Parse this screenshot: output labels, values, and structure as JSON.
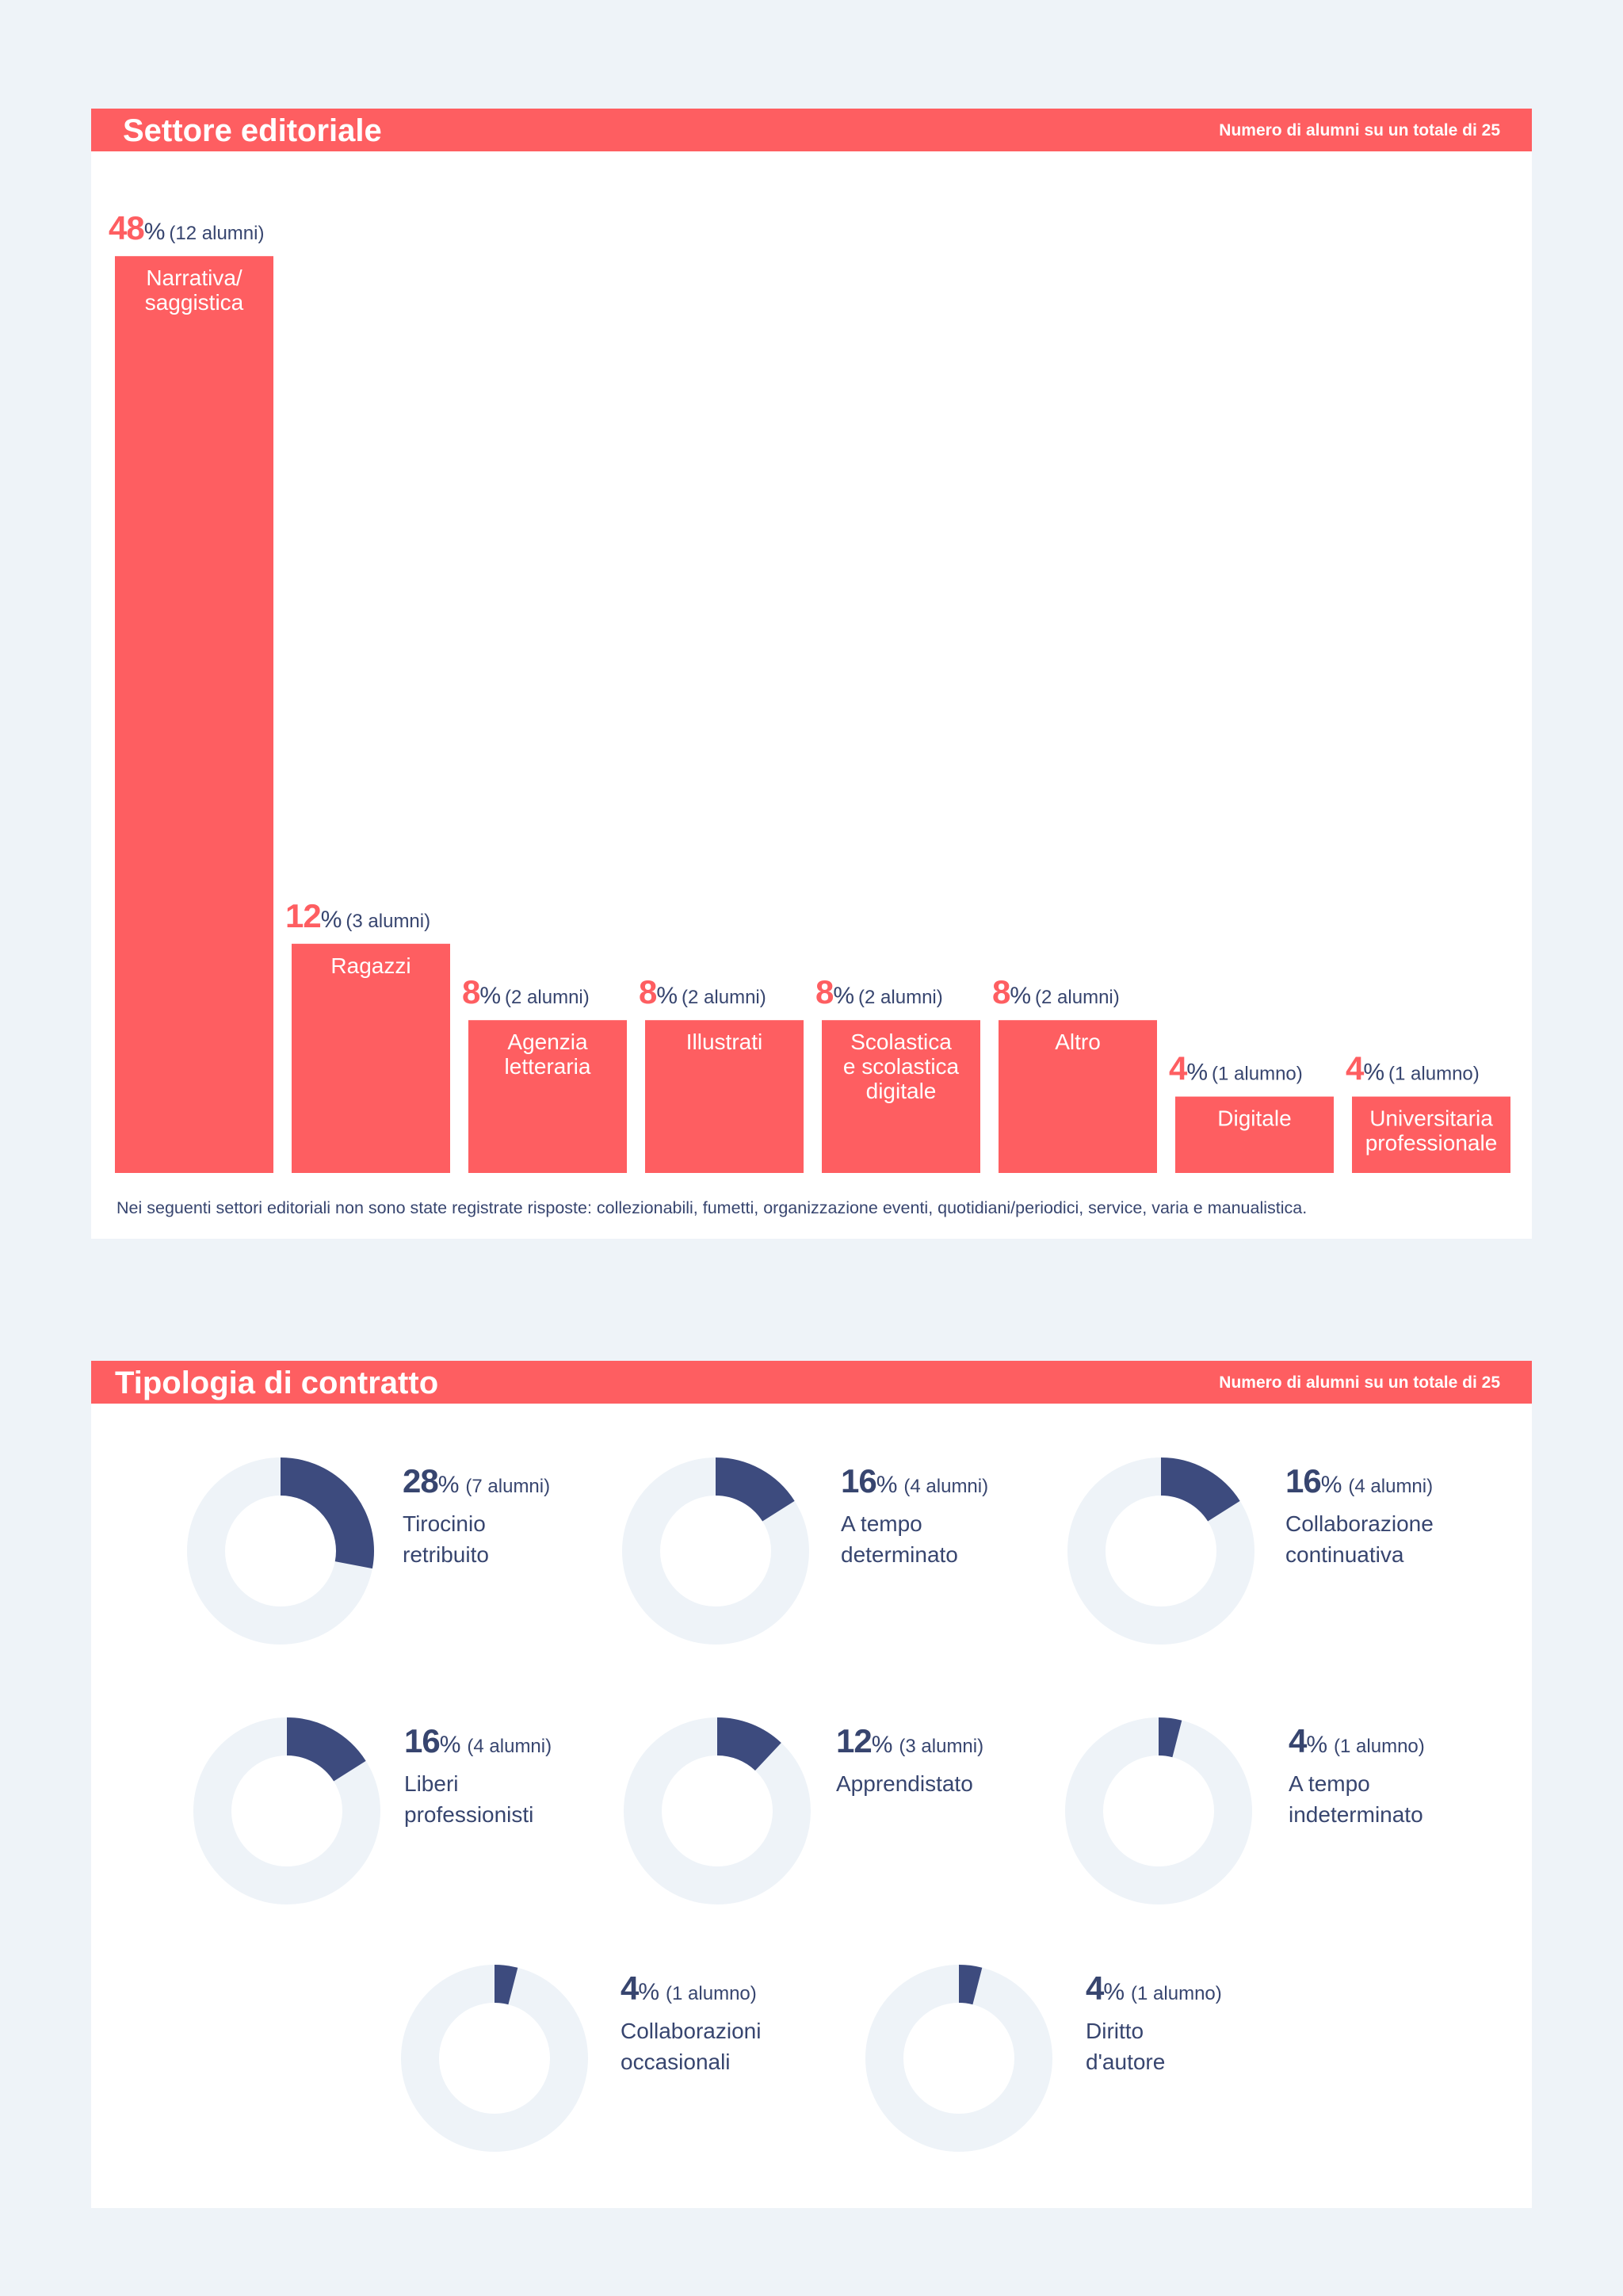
{
  "colors": {
    "accent": "#fe5e61",
    "navy": "#3d4b7e",
    "track": "#eef3f8",
    "text": "#37456f",
    "background": "#eef3f8"
  },
  "sector": {
    "title": "Settore editoriale",
    "note": "Numero di alumni su un totale di 25",
    "footnote": "Nei seguenti settori editoriali non sono state registrate risposte: collezionabili, fumetti, organizzazione eventi, quotidiani/periodici, service, varia e manualistica."
  },
  "contract": {
    "title": "Tipologia di contratto",
    "note": "Numero di alumni su un totale di 25"
  },
  "chart_data": [
    {
      "type": "bar",
      "title": "Settore editoriale",
      "subtitle": "Numero di alumni su un totale di 25",
      "categories": [
        "Narrativa/\nsaggistica",
        "Ragazzi",
        "Agenzia\nletteraria",
        "Illustrati",
        "Scolastica\ne scolastica\ndigitale",
        "Altro",
        "Digitale",
        "Universitaria\nprofessionale"
      ],
      "values": [
        48,
        12,
        8,
        8,
        8,
        8,
        4,
        4
      ],
      "counts": [
        "(12 alumni)",
        "(3 alumni)",
        "(2 alumni)",
        "(2 alumni)",
        "(2 alumni)",
        "(2 alumni)",
        "(1 alumno)",
        "(1 alumno)"
      ],
      "unit": "%",
      "grid": false
    },
    {
      "type": "pie",
      "title": "Tipologia di contratto",
      "subtitle": "Numero di alumni su un totale di 25",
      "style": "donut",
      "categories": [
        "Tirocinio\nretribuito",
        "A tempo\ndeterminato",
        "Collaborazione\ncontinuativa",
        "Liberi\nprofessionisti",
        "Apprendistato",
        "A tempo\nindeterminato",
        "Collaborazioni\noccasionali",
        "Diritto\nd'autore"
      ],
      "values": [
        28,
        16,
        16,
        16,
        12,
        4,
        4,
        4
      ],
      "counts": [
        "(7 alumni)",
        "(4 alumni)",
        "(4 alumni)",
        "(4 alumni)",
        "(3 alumni)",
        "(1 alumno)",
        "(1 alumno)",
        "(1 alumno)"
      ],
      "unit": "%"
    }
  ]
}
